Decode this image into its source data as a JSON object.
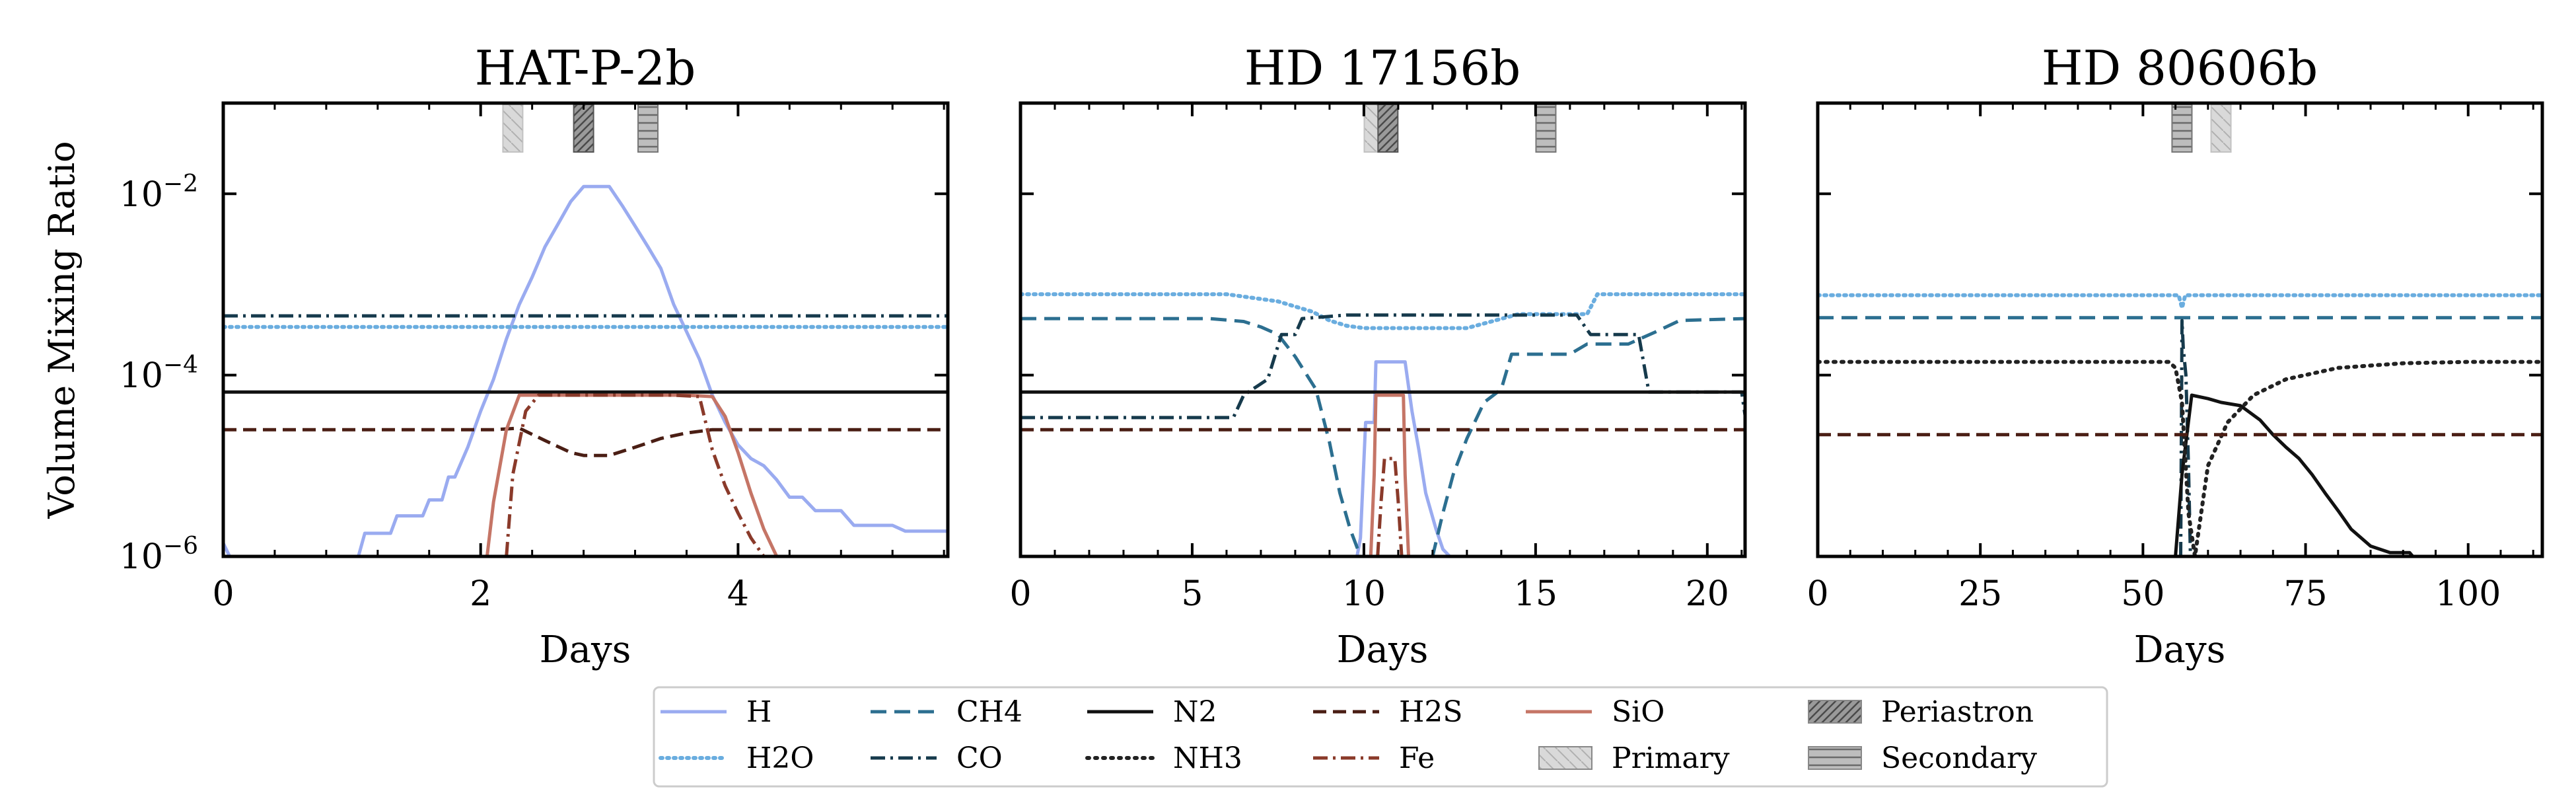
{
  "chart_data": [
    {
      "type": "line",
      "title": "HAT-P-2b",
      "xlabel": "Days",
      "ylabel": "Volume Mixing Ratio",
      "xlim": [
        0,
        5.63
      ],
      "ylim": [
        1e-06,
        0.1
      ],
      "yscale": "log",
      "xticks": [
        0,
        2,
        4
      ],
      "xtick_labels": [
        "0",
        "2",
        "4"
      ],
      "yticks": [
        0.01,
        0.0001,
        1e-06
      ],
      "ytick_labels": [
        [
          "10",
          "−2"
        ],
        [
          "10",
          "−4"
        ],
        [
          "10",
          "−6"
        ]
      ],
      "events": {
        "Primary": 2.25,
        "Periastron": 2.8,
        "Secondary": 3.3
      },
      "series": [
        {
          "name": "H",
          "x": [
            0,
            0.05,
            1.05,
            1.1,
            1.3,
            1.35,
            1.55,
            1.6,
            1.7,
            1.75,
            1.8,
            1.9,
            2.0,
            2.1,
            2.2,
            2.3,
            2.4,
            2.5,
            2.6,
            2.7,
            2.8,
            2.9,
            3.0,
            3.1,
            3.2,
            3.3,
            3.4,
            3.5,
            3.6,
            3.7,
            3.8,
            3.9,
            4.0,
            4.1,
            4.2,
            4.3,
            4.4,
            4.5,
            4.6,
            4.7,
            4.8,
            4.9,
            5.0,
            5.1,
            5.2,
            5.3,
            5.4,
            5.63
          ],
          "y": [
            1.4e-06,
            1e-06,
            1e-06,
            1.8e-06,
            1.8e-06,
            2.8e-06,
            2.8e-06,
            4.2e-06,
            4.2e-06,
            7.5e-06,
            7.5e-06,
            1.6e-05,
            4e-05,
            9e-05,
            0.00025,
            0.0006,
            0.0012,
            0.0026,
            0.0046,
            0.0082,
            0.012,
            0.012,
            0.012,
            0.0074,
            0.0044,
            0.0026,
            0.0015,
            0.0006,
            0.0003,
            0.00015,
            6e-05,
            3e-05,
            1.7e-05,
            1.2e-05,
            1e-05,
            7e-06,
            4.5e-06,
            4.5e-06,
            3.2e-06,
            3.2e-06,
            3.2e-06,
            2.2e-06,
            2.2e-06,
            2.2e-06,
            2.2e-06,
            1.9e-06,
            1.9e-06,
            1.9e-06
          ]
        },
        {
          "name": "H2O",
          "x": [
            0,
            5.63
          ],
          "y": [
            0.00034,
            0.00034
          ]
        },
        {
          "name": "CH4",
          "x": [],
          "y": []
        },
        {
          "name": "CO",
          "x": [
            0,
            5.63
          ],
          "y": [
            0.00045,
            0.00045
          ]
        },
        {
          "name": "N2",
          "x": [
            0,
            5.63
          ],
          "y": [
            6.5e-05,
            6.5e-05
          ]
        },
        {
          "name": "NH3",
          "x": [],
          "y": []
        },
        {
          "name": "H2S",
          "x": [
            0,
            2.1,
            2.3,
            2.5,
            2.7,
            2.8,
            3.0,
            3.2,
            3.4,
            3.6,
            3.8,
            4.0,
            5.63
          ],
          "y": [
            2.5e-05,
            2.5e-05,
            2.6e-05,
            1.9e-05,
            1.4e-05,
            1.3e-05,
            1.3e-05,
            1.6e-05,
            2e-05,
            2.3e-05,
            2.5e-05,
            2.5e-05,
            2.5e-05
          ]
        },
        {
          "name": "SiO",
          "x": [
            2.05,
            2.1,
            2.2,
            2.3,
            2.4,
            3.6,
            3.8,
            3.9,
            4.0,
            4.1,
            4.2,
            4.3
          ],
          "y": [
            1e-06,
            4e-06,
            2.5e-05,
            6e-05,
            6e-05,
            6e-05,
            5.8e-05,
            3.5e-05,
            1.4e-05,
            5e-06,
            2e-06,
            1e-06
          ]
        },
        {
          "name": "Fe",
          "x": [
            2.2,
            2.25,
            2.35,
            2.45,
            2.6,
            3.3,
            3.5,
            3.7,
            3.8,
            3.9,
            4.0,
            4.1,
            4.2
          ],
          "y": [
            1e-06,
            8e-06,
            4e-05,
            6e-05,
            6e-05,
            6e-05,
            6e-05,
            5.8e-05,
            1.5e-05,
            6e-06,
            3e-06,
            1.6e-06,
            1e-06
          ]
        }
      ]
    },
    {
      "type": "line",
      "title": "HD 17156b",
      "xlabel": "Days",
      "ylabel": "",
      "xlim": [
        0,
        21.1
      ],
      "ylim": [
        1e-06,
        0.1
      ],
      "yscale": "log",
      "xticks": [
        0,
        5,
        10,
        15,
        20
      ],
      "xtick_labels": [
        "0",
        "5",
        "10",
        "15",
        "20"
      ],
      "yticks": [],
      "ytick_labels": [],
      "events": {
        "Primary": 10.3,
        "Periastron": 10.7,
        "Secondary": 15.3
      },
      "series": [
        {
          "name": "H",
          "x": [
            9.8,
            9.9,
            10.05,
            10.3,
            10.35,
            10.7,
            11.2,
            11.4,
            11.6,
            11.8,
            12.1,
            12.3,
            12.5
          ],
          "y": [
            1e-06,
            1.6e-06,
            3e-05,
            3e-05,
            0.00014,
            0.00014,
            0.00014,
            4e-05,
            1.5e-05,
            5e-06,
            2e-06,
            1.2e-06,
            1e-06
          ]
        },
        {
          "name": "H2O",
          "x": [
            0,
            6.0,
            7.5,
            8.5,
            9.0,
            9.5,
            10.0,
            13.0,
            14.5,
            15.0,
            16.5,
            16.8,
            21.1
          ],
          "y": [
            0.00078,
            0.00078,
            0.00065,
            0.0005,
            0.0004,
            0.00035,
            0.00033,
            0.00033,
            0.00047,
            0.00047,
            0.00047,
            0.00078,
            0.00078
          ]
        },
        {
          "name": "CH4",
          "x": [
            0,
            5.5,
            6.5,
            7.0,
            7.5,
            8.0,
            8.6,
            9.0,
            9.3,
            9.6,
            9.9,
            10.0,
            12.0,
            12.3,
            12.6,
            13.0,
            13.5,
            14.0,
            14.3,
            14.8,
            15.2,
            16.0,
            16.5,
            17.2,
            17.7,
            18.5,
            19.2,
            21.1
          ],
          "y": [
            0.00042,
            0.00042,
            0.00039,
            0.00034,
            0.00028,
            0.00016,
            7e-05,
            1.8e-05,
            5e-06,
            2e-06,
            1e-06,
            1e-06,
            1e-06,
            3e-06,
            8e-06,
            2e-05,
            5e-05,
            7e-05,
            0.00017,
            0.00017,
            0.00017,
            0.00017,
            0.00022,
            0.00022,
            0.00022,
            0.0003,
            0.0004,
            0.00042
          ]
        },
        {
          "name": "CO",
          "x": [
            0,
            6.2,
            6.5,
            7.2,
            7.6,
            8.0,
            8.2,
            9.5,
            10.5,
            12.0,
            14.0,
            16.2,
            16.6,
            18.0,
            18.3,
            21.0,
            21.1
          ],
          "y": [
            3.4e-05,
            3.4e-05,
            6e-05,
            9e-05,
            0.00028,
            0.00028,
            0.00042,
            0.00046,
            0.00046,
            0.00046,
            0.00046,
            0.00046,
            0.00028,
            0.00028,
            6.5e-05,
            6.5e-05,
            3.6e-05
          ]
        },
        {
          "name": "N2",
          "x": [
            0,
            21.1
          ],
          "y": [
            6.5e-05,
            6.5e-05
          ]
        },
        {
          "name": "NH3",
          "x": [],
          "y": []
        },
        {
          "name": "H2S",
          "x": [
            0,
            21.1
          ],
          "y": [
            2.5e-05,
            2.5e-05
          ]
        },
        {
          "name": "SiO",
          "x": [
            10.2,
            10.3,
            10.35,
            11.15,
            11.2,
            11.3
          ],
          "y": [
            1e-06,
            8e-06,
            6e-05,
            6e-05,
            8e-06,
            1e-06
          ]
        },
        {
          "name": "Fe",
          "x": [
            10.4,
            10.5,
            10.6,
            10.9,
            11.0,
            11.1
          ],
          "y": [
            1e-06,
            4e-06,
            1.2e-05,
            1.2e-05,
            4e-06,
            1e-06
          ]
        }
      ]
    },
    {
      "type": "line",
      "title": "HD 80606b",
      "xlabel": "Days",
      "ylabel": "",
      "xlim": [
        0,
        111.4
      ],
      "ylim": [
        1e-06,
        0.1
      ],
      "yscale": "log",
      "xticks": [
        0,
        25,
        50,
        75,
        100
      ],
      "xtick_labels": [
        "0",
        "25",
        "50",
        "75",
        "100"
      ],
      "yticks": [],
      "ytick_labels": [],
      "events": {
        "Primary": 62.0,
        "Periastron": 56.0,
        "Secondary": 56.0
      },
      "series": [
        {
          "name": "H",
          "x": [],
          "y": []
        },
        {
          "name": "H2O",
          "x": [
            0,
            55.5,
            56.0,
            56.5,
            111.4
          ],
          "y": [
            0.00076,
            0.00076,
            0.00055,
            0.00076,
            0.00076
          ]
        },
        {
          "name": "CH4",
          "x": [
            0,
            111.4
          ],
          "y": [
            0.00043,
            0.00043
          ]
        },
        {
          "name": "CO",
          "x": [
            55.8,
            56.0,
            56.2,
            56.6,
            57.0,
            57.3
          ],
          "y": [
            1e-06,
            0.0004,
            0.0002,
            0.0001,
            1e-05,
            1e-06
          ]
        },
        {
          "name": "N2",
          "x": [
            55.0,
            56.0,
            57.5,
            60,
            62,
            65,
            68,
            70,
            72,
            74,
            76,
            78,
            80,
            82,
            85,
            88,
            91,
            91.5
          ],
          "y": [
            1e-06,
            8e-06,
            6e-05,
            5.5e-05,
            5e-05,
            4.6e-05,
            3.2e-05,
            2.2e-05,
            1.6e-05,
            1.2e-05,
            8e-06,
            5e-06,
            3.2e-06,
            2e-06,
            1.3e-06,
            1.1e-06,
            1.1e-06,
            1e-06
          ]
        },
        {
          "name": "NH3",
          "x": [
            0,
            54.0,
            55.0,
            56.0,
            57.0,
            58.0,
            60.0,
            63.0,
            67.0,
            72.0,
            80.0,
            90.0,
            100.0,
            111.4
          ],
          "y": [
            0.00014,
            0.00014,
            0.00012,
            5e-05,
            3e-06,
            1e-06,
            1e-05,
            3e-05,
            6e-05,
            9e-05,
            0.00012,
            0.000135,
            0.00014,
            0.00014
          ]
        },
        {
          "name": "H2S",
          "x": [
            0,
            111.4
          ],
          "y": [
            2.2e-05,
            2.2e-05
          ]
        },
        {
          "name": "SiO",
          "x": [],
          "y": []
        },
        {
          "name": "Fe",
          "x": [],
          "y": []
        }
      ]
    }
  ],
  "legend": [
    {
      "name": "H",
      "kind": "line",
      "color": "#9aabf0",
      "dash": "",
      "width": 5
    },
    {
      "name": "H2O",
      "kind": "line",
      "color": "#6aaddf",
      "dash": "3,7",
      "width": 6
    },
    {
      "name": "CH4",
      "kind": "line",
      "color": "#2c6f90",
      "dash": "24,12",
      "width": 5
    },
    {
      "name": "CO",
      "kind": "line",
      "color": "#163a4c",
      "dash": "22,8,4,8",
      "width": 5
    },
    {
      "name": "N2",
      "kind": "line",
      "color": "#111111",
      "dash": "",
      "width": 5
    },
    {
      "name": "NH3",
      "kind": "line",
      "color": "#222222",
      "dash": "3,9",
      "width": 6
    },
    {
      "name": "H2S",
      "kind": "line",
      "color": "#4a1e14",
      "dash": "20,10",
      "width": 5
    },
    {
      "name": "Fe",
      "kind": "line",
      "color": "#8a3a2a",
      "dash": "22,8,4,8",
      "width": 5
    },
    {
      "name": "SiO",
      "kind": "line",
      "color": "#c57566",
      "dash": "",
      "width": 5
    },
    {
      "name": "Primary",
      "kind": "patch",
      "pattern": "pat-primary"
    },
    {
      "name": "Periastron",
      "kind": "patch",
      "pattern": "pat-peri"
    },
    {
      "name": "Secondary",
      "kind": "patch",
      "pattern": "pat-sec"
    }
  ]
}
